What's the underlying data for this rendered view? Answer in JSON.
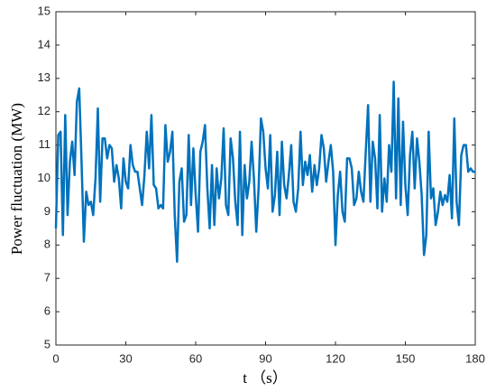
{
  "chart_data": {
    "type": "line",
    "xlabel": "t （s）",
    "ylabel": "Power fluctuation (MW)",
    "x": [
      0,
      1,
      2,
      3,
      4,
      5,
      6,
      7,
      8,
      9,
      10,
      11,
      12,
      13,
      14,
      15,
      16,
      17,
      18,
      19,
      20,
      21,
      22,
      23,
      24,
      25,
      26,
      27,
      28,
      29,
      30,
      31,
      32,
      33,
      34,
      35,
      36,
      37,
      38,
      39,
      40,
      41,
      42,
      43,
      44,
      45,
      46,
      47,
      48,
      49,
      50,
      51,
      52,
      53,
      54,
      55,
      56,
      57,
      58,
      59,
      60,
      61,
      62,
      63,
      64,
      65,
      66,
      67,
      68,
      69,
      70,
      71,
      72,
      73,
      74,
      75,
      76,
      77,
      78,
      79,
      80,
      81,
      82,
      83,
      84,
      85,
      86,
      87,
      88,
      89,
      90,
      91,
      92,
      93,
      94,
      95,
      96,
      97,
      98,
      99,
      100,
      101,
      102,
      103,
      104,
      105,
      106,
      107,
      108,
      109,
      110,
      111,
      112,
      113,
      114,
      115,
      116,
      117,
      118,
      119,
      120,
      121,
      122,
      123,
      124,
      125,
      126,
      127,
      128,
      129,
      130,
      131,
      132,
      133,
      134,
      135,
      136,
      137,
      138,
      139,
      140,
      141,
      142,
      143,
      144,
      145,
      146,
      147,
      148,
      149,
      150,
      151,
      152,
      153,
      154,
      155,
      156,
      157,
      158,
      159,
      160,
      161,
      162,
      163,
      164,
      165,
      166,
      167,
      168,
      169,
      170,
      171,
      172,
      173,
      174,
      175,
      176,
      177,
      178,
      179,
      180
    ],
    "series": [
      {
        "name": "Power fluctuation",
        "color": "#0072bd",
        "values": [
          8.5,
          11.3,
          11.4,
          8.3,
          11.9,
          8.9,
          10.5,
          11.1,
          10.1,
          12.3,
          12.7,
          10.5,
          8.1,
          9.6,
          9.2,
          9.3,
          8.9,
          10.0,
          12.1,
          9.3,
          11.2,
          11.2,
          10.6,
          11.0,
          10.9,
          9.9,
          10.4,
          10.0,
          9.1,
          10.6,
          9.9,
          9.7,
          11.0,
          10.4,
          10.2,
          10.2,
          9.7,
          9.2,
          10.1,
          11.4,
          10.3,
          11.9,
          9.8,
          9.7,
          9.1,
          9.2,
          9.1,
          11.6,
          10.5,
          10.8,
          11.4,
          8.9,
          7.5,
          9.9,
          10.3,
          8.7,
          8.9,
          11.3,
          9.2,
          10.9,
          9.5,
          8.4,
          10.8,
          11.1,
          11.6,
          9.7,
          8.5,
          10.4,
          8.6,
          10.3,
          9.4,
          10.0,
          11.5,
          9.2,
          8.9,
          11.2,
          10.6,
          9.3,
          8.6,
          11.4,
          8.3,
          10.4,
          9.4,
          9.9,
          11.1,
          10.0,
          8.4,
          9.7,
          11.8,
          11.4,
          10.3,
          9.7,
          11.3,
          9.0,
          9.5,
          10.8,
          8.9,
          11.1,
          9.8,
          9.4,
          10.1,
          11.0,
          9.3,
          9.0,
          9.7,
          11.4,
          9.8,
          10.5,
          10.1,
          10.7,
          9.6,
          10.4,
          9.8,
          10.3,
          11.3,
          10.9,
          9.9,
          10.5,
          11.0,
          10.2,
          8.0,
          9.5,
          10.2,
          9.0,
          8.7,
          10.6,
          10.6,
          10.3,
          9.2,
          9.4,
          10.2,
          9.6,
          9.3,
          10.8,
          12.2,
          9.3,
          11.1,
          10.6,
          9.1,
          11.9,
          9.0,
          10.0,
          9.3,
          11.0,
          10.2,
          12.9,
          9.4,
          12.4,
          9.2,
          11.7,
          9.8,
          8.9,
          10.7,
          11.4,
          9.7,
          11.2,
          10.5,
          9.5,
          7.7,
          8.3,
          11.4,
          9.4,
          9.7,
          8.6,
          9.0,
          9.6,
          9.2,
          9.5,
          9.3,
          10.1,
          8.8,
          11.8,
          9.3,
          8.6,
          10.7,
          11.0,
          11.0,
          10.2,
          10.3,
          10.2,
          10.2
        ]
      }
    ],
    "xlim": [
      0,
      180
    ],
    "xticks": [
      0,
      30,
      60,
      90,
      120,
      150,
      180
    ],
    "ylim": [
      5,
      15
    ],
    "yticks": [
      5,
      6,
      7,
      8,
      9,
      10,
      11,
      12,
      13,
      14,
      15
    ]
  }
}
